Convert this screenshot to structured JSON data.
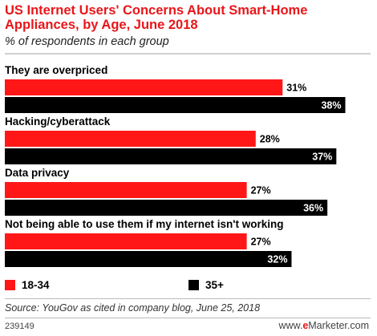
{
  "chart_data": {
    "type": "bar",
    "orientation": "horizontal",
    "title": "US Internet Users' Concerns About Smart-Home Appliances, by Age, June 2018",
    "subtitle": "% of respondents in each group",
    "categories": [
      "They are overpriced",
      "Hacking/cyberattack",
      "Data privacy",
      "Not being able to use them if my internet isn't working"
    ],
    "series": [
      {
        "name": "18-34",
        "color": "#ff1717",
        "values": [
          31,
          28,
          27,
          27
        ]
      },
      {
        "name": "35+",
        "color": "#000000",
        "values": [
          38,
          37,
          36,
          32
        ]
      }
    ],
    "value_suffix": "%",
    "xlim": [
      0,
      41
    ]
  },
  "legend": {
    "items": [
      {
        "label": "18-34",
        "color": "#ff1717"
      },
      {
        "label": "35+",
        "color": "#000000"
      }
    ]
  },
  "footer": {
    "source": "Source: YouGov as cited in company blog, June 25, 2018",
    "chart_id": "239149",
    "brand_e": "e",
    "brand_rest": "Marketer",
    "brand_domain": "www.eMarketer.com"
  }
}
